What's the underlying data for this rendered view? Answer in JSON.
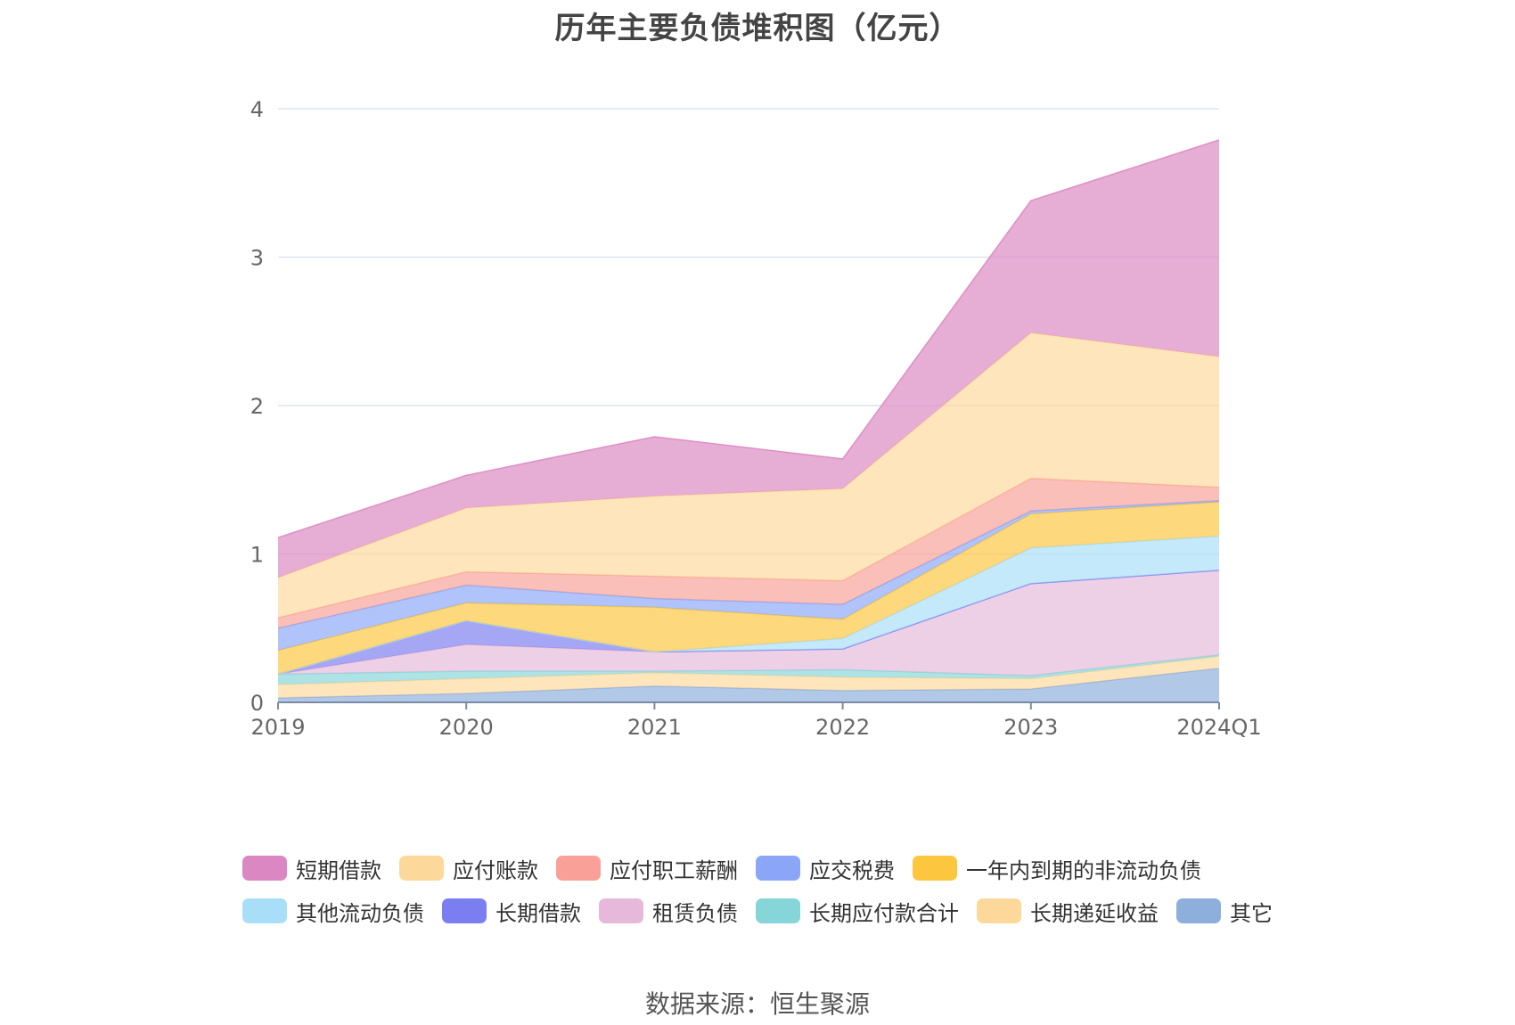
{
  "chart_data": {
    "type": "area",
    "stacked": true,
    "title": "历年主要负债堆积图（亿元）",
    "x": [
      "2019",
      "2020",
      "2021",
      "2022",
      "2023",
      "2024Q1"
    ],
    "ylim": [
      0,
      4
    ],
    "yticks": [
      "0",
      "1",
      "2",
      "3",
      "4"
    ],
    "grid": true,
    "legend_position": "bottom",
    "series": [
      {
        "name": "其它",
        "color": "#8eaedb",
        "values": [
          0.03,
          0.06,
          0.11,
          0.08,
          0.09,
          0.23
        ]
      },
      {
        "name": "长期递延收益",
        "color": "#fdd89b",
        "values": [
          0.09,
          0.1,
          0.09,
          0.09,
          0.07,
          0.08
        ]
      },
      {
        "name": "长期应付款合计",
        "color": "#86d6d9",
        "values": [
          0.07,
          0.05,
          0.01,
          0.05,
          0.02,
          0.01
        ]
      },
      {
        "name": "租赁负债",
        "color": "#e6b9da",
        "values": [
          0.0,
          0.18,
          0.13,
          0.14,
          0.62,
          0.57
        ]
      },
      {
        "name": "长期借款",
        "color": "#7b7ef0",
        "values": [
          0.0,
          0.16,
          0.0,
          0.0,
          0.0,
          0.0
        ]
      },
      {
        "name": "其他流动负债",
        "color": "#a8def8",
        "values": [
          0.0,
          0.0,
          0.0,
          0.07,
          0.24,
          0.23
        ]
      },
      {
        "name": "一年内到期的非流动负债",
        "color": "#fdc63f",
        "values": [
          0.16,
          0.12,
          0.3,
          0.13,
          0.23,
          0.23
        ]
      },
      {
        "name": "应交税费",
        "color": "#8ba6f7",
        "values": [
          0.15,
          0.12,
          0.06,
          0.1,
          0.02,
          0.01
        ]
      },
      {
        "name": "应付职工薪酬",
        "color": "#f9a198",
        "values": [
          0.07,
          0.09,
          0.15,
          0.16,
          0.22,
          0.09
        ]
      },
      {
        "name": "应付账款",
        "color": "#fdd89b",
        "values": [
          0.27,
          0.43,
          0.54,
          0.62,
          0.98,
          0.88
        ]
      },
      {
        "name": "短期借款",
        "color": "#db87c1",
        "values": [
          0.27,
          0.22,
          0.4,
          0.2,
          0.89,
          1.46
        ]
      }
    ]
  },
  "legend": {
    "row1": [
      {
        "label": "短期借款",
        "color": "#db87c1"
      },
      {
        "label": "应付账款",
        "color": "#fdd89b"
      },
      {
        "label": "应付职工薪酬",
        "color": "#f9a198"
      },
      {
        "label": "应交税费",
        "color": "#8ba6f7"
      },
      {
        "label": "一年内到期的非流动负债",
        "color": "#fdc63f"
      }
    ],
    "row2": [
      {
        "label": "其他流动负债",
        "color": "#a8def8"
      },
      {
        "label": "长期借款",
        "color": "#7b7ef0"
      },
      {
        "label": "租赁负债",
        "color": "#e6b9da"
      },
      {
        "label": "长期应付款合计",
        "color": "#86d6d9"
      },
      {
        "label": "长期递延收益",
        "color": "#fdd89b"
      },
      {
        "label": "其它",
        "color": "#8eaedb"
      }
    ]
  },
  "source": "数据来源：恒生聚源"
}
